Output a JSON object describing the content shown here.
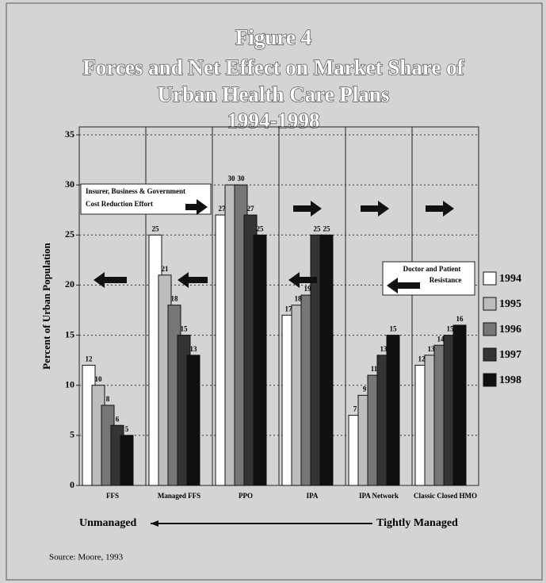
{
  "chart_data": {
    "type": "bar",
    "title": [
      "Figure 4",
      "Forces and Net Effect on Market Share of",
      "Urban Health Care Plans",
      "1994-1998"
    ],
    "y_label": "Percent of Urban Population",
    "categories": [
      "FFS",
      "Managed FFS",
      "PPO",
      "IPA",
      "IPA Network",
      "Classic Closed HMO"
    ],
    "series": [
      {
        "name": "1994",
        "color": "#ffffff",
        "values": [
          12,
          25,
          27,
          17,
          7,
          12
        ]
      },
      {
        "name": "1995",
        "color": "#bdbdbd",
        "values": [
          10,
          21,
          30,
          18,
          9,
          13
        ]
      },
      {
        "name": "1996",
        "color": "#767676",
        "values": [
          8,
          18,
          30,
          19,
          11,
          14
        ]
      },
      {
        "name": "1997",
        "color": "#343434",
        "values": [
          6,
          15,
          27,
          25,
          13,
          15
        ]
      },
      {
        "name": "1998",
        "color": "#101010",
        "values": [
          5,
          13,
          25,
          25,
          15,
          16
        ]
      }
    ],
    "ylim": [
      0,
      35
    ],
    "yticks": [
      0,
      5,
      10,
      15,
      20,
      25,
      30,
      35
    ],
    "grid": true,
    "legend": "right",
    "annotations": [
      "Insurer, Business & Government",
      "Cost Reduction Effort",
      "Doctor and Patient",
      "Resistance"
    ],
    "axis_ends": [
      "Unmanaged",
      "Tightly Managed"
    ],
    "source": "Source:  Moore, 1993"
  }
}
